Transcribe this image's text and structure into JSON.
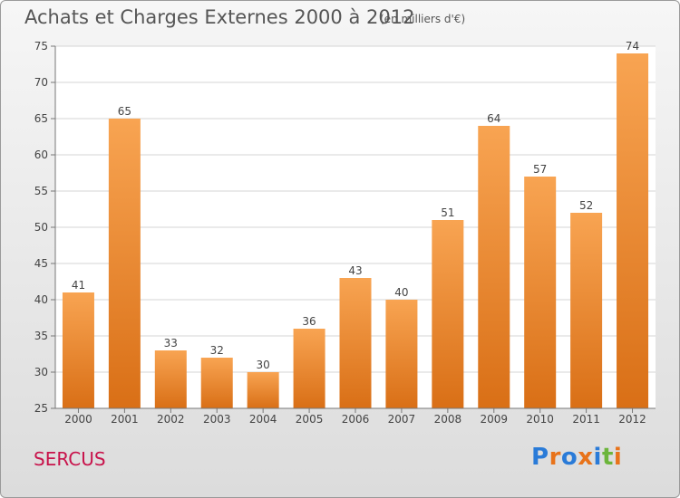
{
  "header": {
    "title": "Achats et Charges Externes 2000 à 2012",
    "subtitle": "(en milliers d'€)"
  },
  "footer": {
    "commune": "SERCUS",
    "logo_text": "Proxiti"
  },
  "colors": {
    "bar_top": "#f8a452",
    "bar_bottom": "#d96f16",
    "title": "#555555",
    "commune": "#c8134b",
    "logo_letters": [
      "#2a7bd8",
      "#e8731a",
      "#2a7bd8",
      "#e8731a",
      "#2a7bd8",
      "#6cb53b",
      "#e8731a"
    ]
  },
  "chart_data": {
    "type": "bar",
    "categories": [
      "2000",
      "2001",
      "2002",
      "2003",
      "2004",
      "2005",
      "2006",
      "2007",
      "2008",
      "2009",
      "2010",
      "2011",
      "2012"
    ],
    "values": [
      41,
      65,
      33,
      32,
      30,
      36,
      43,
      40,
      51,
      64,
      57,
      52,
      74
    ],
    "title": "Achats et Charges Externes 2000 à 2012",
    "subtitle": "(en milliers d'€)",
    "ylim": [
      25,
      75
    ],
    "yticks": [
      25,
      30,
      35,
      40,
      45,
      50,
      55,
      60,
      65,
      70,
      75
    ],
    "grid": true,
    "data_labels": true
  }
}
